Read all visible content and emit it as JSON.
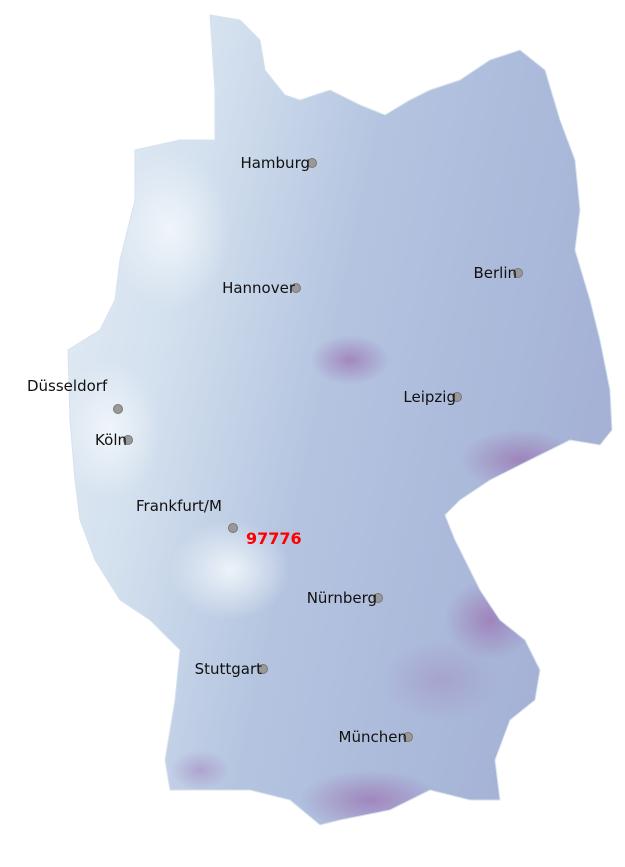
{
  "map": {
    "colors": {
      "west": "#e9f1f8",
      "center": "#c2d2e6",
      "east": "#a8b6d8",
      "hotspot": "#9b6fb0",
      "marker": "#999999",
      "highlight": "#ff0000"
    },
    "cities": [
      {
        "name": "Hamburg"
      },
      {
        "name": "Hannover"
      },
      {
        "name": "Berlin"
      },
      {
        "name": "Düsseldorf"
      },
      {
        "name": "Köln"
      },
      {
        "name": "Leipzig"
      },
      {
        "name": "Frankfurt/M"
      },
      {
        "name": "Nürnberg"
      },
      {
        "name": "Stuttgart"
      },
      {
        "name": "München"
      }
    ],
    "highlight_label": "97776"
  }
}
